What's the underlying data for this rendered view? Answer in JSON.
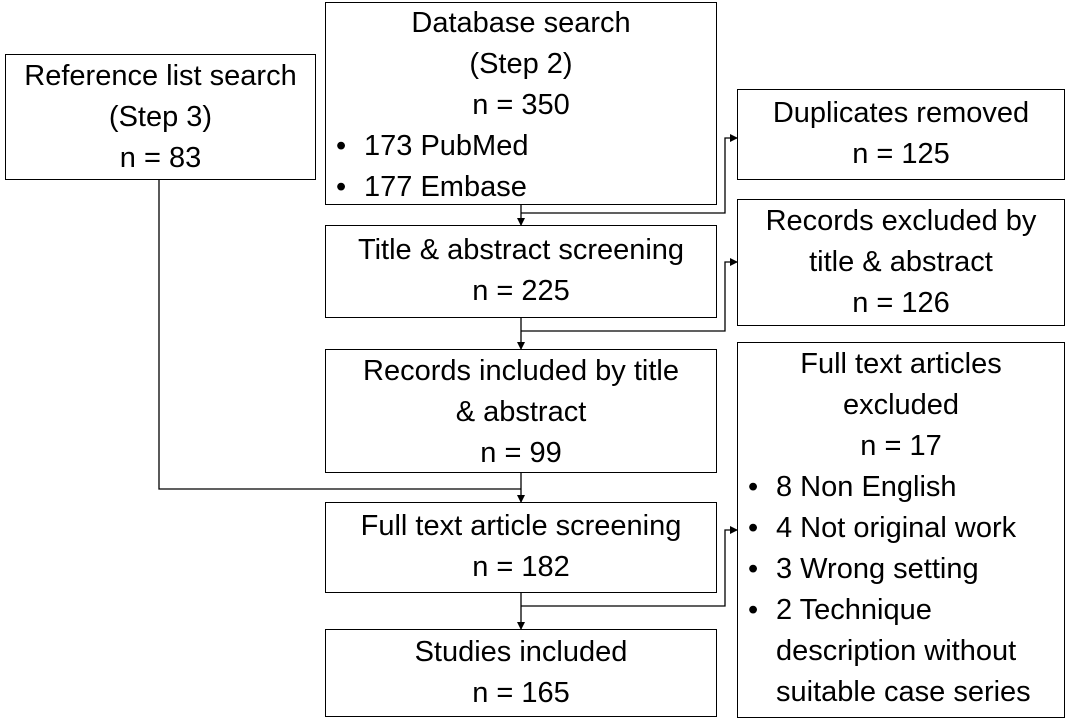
{
  "reference_search": {
    "title": "Reference list search",
    "step": "(Step 3)",
    "n": "n = 83"
  },
  "database_search": {
    "title": "Database search",
    "step": "(Step 2)",
    "n": "n = 350",
    "bullets": [
      "173 PubMed",
      "177 Embase"
    ]
  },
  "duplicates": {
    "title": "Duplicates removed",
    "n": "n = 125"
  },
  "title_screening": {
    "title": "Title & abstract screening",
    "n": "n = 225"
  },
  "excluded_title": {
    "line1": "Records excluded by",
    "line2": "title & abstract",
    "n": "n = 126"
  },
  "included_title": {
    "line1": "Records included by title",
    "line2": "& abstract",
    "n": "n = 99"
  },
  "fulltext_excluded": {
    "line1": "Full text articles",
    "line2": "excluded",
    "n": "n = 17",
    "bullets": [
      "8 Non English",
      "4 Not original work",
      "3 Wrong setting"
    ],
    "last_bullet": [
      "2 Technique",
      "description without",
      "suitable case series"
    ]
  },
  "fulltext_screening": {
    "title": "Full text article screening",
    "n": "n = 182"
  },
  "studies_included": {
    "title": "Studies included",
    "n": "n = 165"
  }
}
